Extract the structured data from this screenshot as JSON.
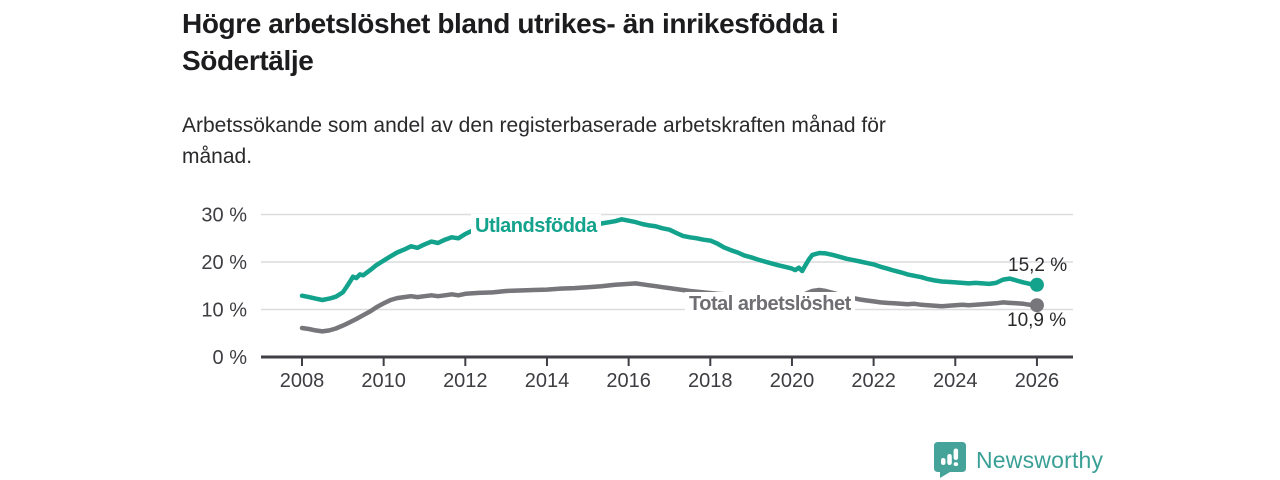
{
  "chart_data": {
    "type": "line",
    "title": "Högre arbetslöshet bland utrikes- än inrikesfödda i Södertälje",
    "title_lines": [
      "Högre arbetslöshet bland utrikes- än inrikesfödda i",
      "Södertälje"
    ],
    "subtitle_lines": [
      "Arbetssökande som andel av den registerbaserade arbetskraften månad för",
      "månad."
    ],
    "xlabel": "",
    "ylabel": "",
    "grid": "horizontal",
    "legend_position": "inline-labels",
    "x_ticks": [
      2008,
      2010,
      2012,
      2014,
      2016,
      2018,
      2020,
      2022,
      2024,
      2026
    ],
    "y_tick_values": [
      0,
      10,
      20,
      30
    ],
    "y_tick_labels": [
      "0 %",
      "10 %",
      "20 %",
      "30 %"
    ],
    "ylim": [
      0,
      31
    ],
    "xlim": [
      2007.1,
      2026.9
    ],
    "colors": {
      "accent_teal": "#13a28c",
      "neutral_gray": "#76767b",
      "gridline": "#dcdcde",
      "axis": "#3f3f46"
    },
    "series": [
      {
        "name": "Utlandsfödda",
        "color": "#13a28c",
        "end_label": "15,2 %",
        "end_value": 15.2,
        "points": [
          [
            2008.0,
            12.9
          ],
          [
            2008.17,
            12.6
          ],
          [
            2008.33,
            12.3
          ],
          [
            2008.5,
            12.0
          ],
          [
            2008.67,
            12.3
          ],
          [
            2008.83,
            12.7
          ],
          [
            2009.0,
            13.6
          ],
          [
            2009.08,
            14.6
          ],
          [
            2009.17,
            15.8
          ],
          [
            2009.25,
            16.9
          ],
          [
            2009.33,
            16.6
          ],
          [
            2009.42,
            17.4
          ],
          [
            2009.5,
            17.2
          ],
          [
            2009.67,
            18.3
          ],
          [
            2009.83,
            19.4
          ],
          [
            2010.0,
            20.3
          ],
          [
            2010.17,
            21.2
          ],
          [
            2010.33,
            22.0
          ],
          [
            2010.5,
            22.6
          ],
          [
            2010.67,
            23.3
          ],
          [
            2010.83,
            23.0
          ],
          [
            2011.0,
            23.7
          ],
          [
            2011.17,
            24.3
          ],
          [
            2011.33,
            24.0
          ],
          [
            2011.5,
            24.7
          ],
          [
            2011.67,
            25.2
          ],
          [
            2011.83,
            25.0
          ],
          [
            2012.0,
            25.9
          ],
          [
            2012.17,
            26.6
          ],
          [
            2012.33,
            27.0
          ],
          [
            2012.5,
            26.9
          ],
          [
            2012.67,
            26.7
          ],
          [
            2012.83,
            26.9
          ],
          [
            2013.0,
            27.0
          ],
          [
            2013.33,
            27.2
          ],
          [
            2013.67,
            27.3
          ],
          [
            2014.0,
            27.4
          ],
          [
            2014.33,
            27.6
          ],
          [
            2014.67,
            27.7
          ],
          [
            2015.0,
            27.9
          ],
          [
            2015.33,
            28.1
          ],
          [
            2015.67,
            28.6
          ],
          [
            2015.83,
            29.0
          ],
          [
            2016.0,
            28.7
          ],
          [
            2016.17,
            28.4
          ],
          [
            2016.33,
            28.0
          ],
          [
            2016.5,
            27.7
          ],
          [
            2016.67,
            27.5
          ],
          [
            2016.83,
            27.1
          ],
          [
            2017.0,
            26.8
          ],
          [
            2017.17,
            26.1
          ],
          [
            2017.33,
            25.5
          ],
          [
            2017.5,
            25.2
          ],
          [
            2017.67,
            25.0
          ],
          [
            2017.83,
            24.7
          ],
          [
            2018.0,
            24.5
          ],
          [
            2018.17,
            23.9
          ],
          [
            2018.33,
            23.1
          ],
          [
            2018.5,
            22.5
          ],
          [
            2018.67,
            22.0
          ],
          [
            2018.83,
            21.4
          ],
          [
            2019.0,
            21.0
          ],
          [
            2019.17,
            20.5
          ],
          [
            2019.33,
            20.1
          ],
          [
            2019.5,
            19.7
          ],
          [
            2019.67,
            19.3
          ],
          [
            2019.83,
            19.0
          ],
          [
            2020.0,
            18.6
          ],
          [
            2020.08,
            18.3
          ],
          [
            2020.17,
            18.8
          ],
          [
            2020.25,
            18.1
          ],
          [
            2020.33,
            19.3
          ],
          [
            2020.42,
            20.6
          ],
          [
            2020.5,
            21.5
          ],
          [
            2020.67,
            21.9
          ],
          [
            2020.83,
            21.8
          ],
          [
            2021.0,
            21.5
          ],
          [
            2021.17,
            21.1
          ],
          [
            2021.33,
            20.7
          ],
          [
            2021.5,
            20.4
          ],
          [
            2021.67,
            20.1
          ],
          [
            2021.83,
            19.8
          ],
          [
            2022.0,
            19.5
          ],
          [
            2022.17,
            19.0
          ],
          [
            2022.33,
            18.6
          ],
          [
            2022.5,
            18.2
          ],
          [
            2022.67,
            17.8
          ],
          [
            2022.83,
            17.4
          ],
          [
            2023.0,
            17.1
          ],
          [
            2023.17,
            16.8
          ],
          [
            2023.33,
            16.4
          ],
          [
            2023.5,
            16.1
          ],
          [
            2023.67,
            15.9
          ],
          [
            2023.83,
            15.8
          ],
          [
            2024.0,
            15.7
          ],
          [
            2024.17,
            15.6
          ],
          [
            2024.33,
            15.5
          ],
          [
            2024.5,
            15.6
          ],
          [
            2024.67,
            15.5
          ],
          [
            2024.83,
            15.4
          ],
          [
            2025.0,
            15.6
          ],
          [
            2025.17,
            16.3
          ],
          [
            2025.33,
            16.5
          ],
          [
            2025.5,
            16.1
          ],
          [
            2025.67,
            15.7
          ],
          [
            2025.83,
            15.4
          ],
          [
            2026.0,
            15.2
          ]
        ]
      },
      {
        "name": "Total arbetslöshet",
        "color": "#76767b",
        "end_label": "10,9 %",
        "end_value": 10.9,
        "points": [
          [
            2008.0,
            6.1
          ],
          [
            2008.17,
            5.9
          ],
          [
            2008.33,
            5.6
          ],
          [
            2008.5,
            5.4
          ],
          [
            2008.67,
            5.6
          ],
          [
            2008.83,
            6.0
          ],
          [
            2009.0,
            6.6
          ],
          [
            2009.17,
            7.3
          ],
          [
            2009.33,
            8.0
          ],
          [
            2009.5,
            8.8
          ],
          [
            2009.67,
            9.6
          ],
          [
            2009.83,
            10.5
          ],
          [
            2010.0,
            11.3
          ],
          [
            2010.17,
            12.0
          ],
          [
            2010.33,
            12.4
          ],
          [
            2010.5,
            12.6
          ],
          [
            2010.67,
            12.8
          ],
          [
            2010.83,
            12.6
          ],
          [
            2011.0,
            12.8
          ],
          [
            2011.17,
            13.0
          ],
          [
            2011.33,
            12.8
          ],
          [
            2011.5,
            13.0
          ],
          [
            2011.67,
            13.2
          ],
          [
            2011.83,
            13.0
          ],
          [
            2012.0,
            13.3
          ],
          [
            2012.33,
            13.5
          ],
          [
            2012.67,
            13.6
          ],
          [
            2013.0,
            13.9
          ],
          [
            2013.33,
            14.0
          ],
          [
            2013.67,
            14.1
          ],
          [
            2014.0,
            14.2
          ],
          [
            2014.33,
            14.4
          ],
          [
            2014.67,
            14.5
          ],
          [
            2015.0,
            14.7
          ],
          [
            2015.33,
            14.9
          ],
          [
            2015.67,
            15.2
          ],
          [
            2016.0,
            15.4
          ],
          [
            2016.17,
            15.5
          ],
          [
            2016.33,
            15.3
          ],
          [
            2016.5,
            15.1
          ],
          [
            2016.67,
            14.9
          ],
          [
            2016.83,
            14.7
          ],
          [
            2017.0,
            14.5
          ],
          [
            2017.17,
            14.3
          ],
          [
            2017.33,
            14.1
          ],
          [
            2017.5,
            13.9
          ],
          [
            2017.83,
            13.6
          ],
          [
            2018.17,
            13.3
          ],
          [
            2018.5,
            13.1
          ],
          [
            2018.83,
            12.9
          ],
          [
            2019.17,
            12.7
          ],
          [
            2019.5,
            12.5
          ],
          [
            2019.83,
            12.3
          ],
          [
            2020.0,
            12.2
          ],
          [
            2020.17,
            12.5
          ],
          [
            2020.33,
            13.3
          ],
          [
            2020.5,
            13.9
          ],
          [
            2020.67,
            14.1
          ],
          [
            2020.83,
            13.9
          ],
          [
            2021.0,
            13.5
          ],
          [
            2021.17,
            13.1
          ],
          [
            2021.33,
            12.7
          ],
          [
            2021.5,
            12.4
          ],
          [
            2021.67,
            12.1
          ],
          [
            2021.83,
            11.9
          ],
          [
            2022.0,
            11.7
          ],
          [
            2022.17,
            11.5
          ],
          [
            2022.33,
            11.4
          ],
          [
            2022.5,
            11.3
          ],
          [
            2022.67,
            11.2
          ],
          [
            2022.83,
            11.1
          ],
          [
            2023.0,
            11.2
          ],
          [
            2023.17,
            11.0
          ],
          [
            2023.33,
            10.9
          ],
          [
            2023.5,
            10.8
          ],
          [
            2023.67,
            10.7
          ],
          [
            2023.83,
            10.8
          ],
          [
            2024.0,
            10.9
          ],
          [
            2024.17,
            11.0
          ],
          [
            2024.33,
            10.9
          ],
          [
            2024.5,
            11.0
          ],
          [
            2024.67,
            11.1
          ],
          [
            2024.83,
            11.2
          ],
          [
            2025.0,
            11.3
          ],
          [
            2025.17,
            11.5
          ],
          [
            2025.33,
            11.4
          ],
          [
            2025.5,
            11.3
          ],
          [
            2025.67,
            11.2
          ],
          [
            2025.83,
            11.0
          ],
          [
            2026.0,
            10.9
          ]
        ]
      }
    ]
  },
  "footer": {
    "brand": "Newsworthy",
    "logo_icon": "bar-chart-speech-bubble",
    "logo_color": "#45a39a"
  }
}
